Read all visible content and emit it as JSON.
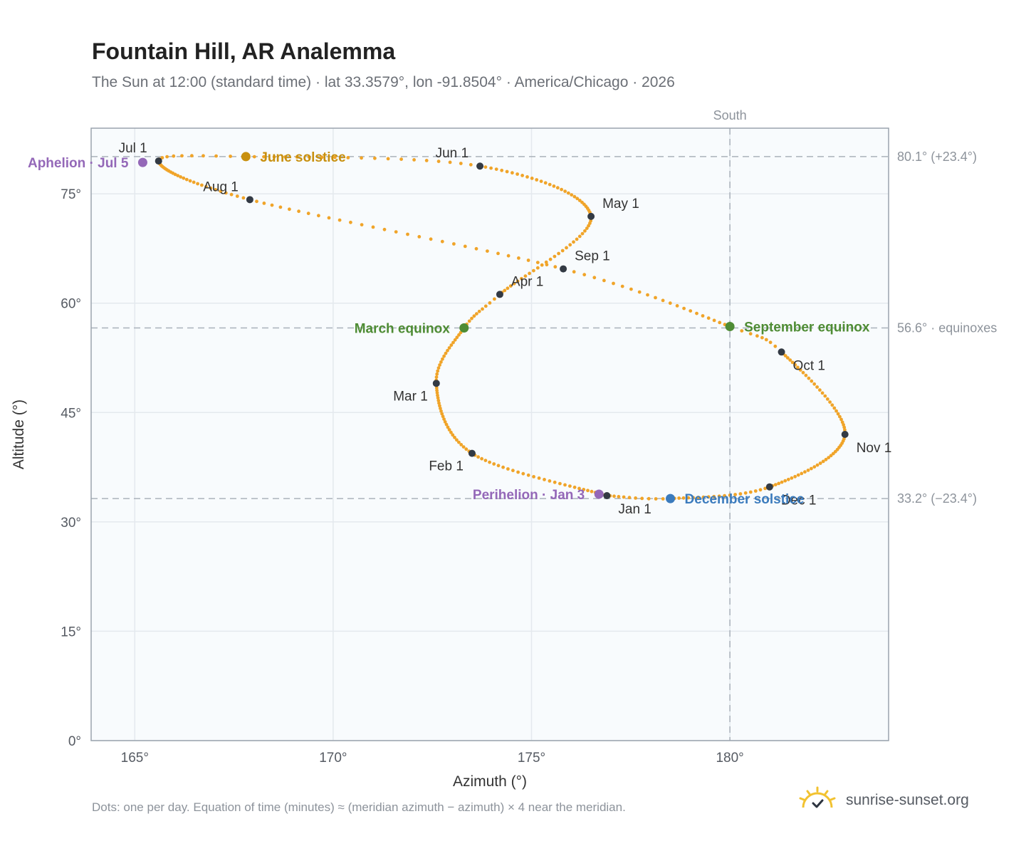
{
  "header": {
    "title": "Fountain Hill, AR Analemma",
    "subtitle": "The Sun at 12:00 (standard time) · lat 33.3579°, lon -91.8504° · America/Chicago · 2026"
  },
  "footer": {
    "note": "Dots: one per day. Equation of time (minutes) ≈ (meridian azimuth − azimuth) × 4 near the meridian.",
    "brand": "sunrise-sunset.org",
    "brand_icon": "sun-logo-icon"
  },
  "chart_data": {
    "type": "scatter",
    "xlabel": "Azimuth (°)",
    "ylabel": "Altitude (°)",
    "xlim": [
      163.9,
      184.0
    ],
    "ylim": [
      0,
      84
    ],
    "x_ticks": [
      {
        "value": 165,
        "label": "165°"
      },
      {
        "value": 170,
        "label": "170°"
      },
      {
        "value": 175,
        "label": "175°"
      },
      {
        "value": 180,
        "label": "180°"
      }
    ],
    "y_ticks": [
      {
        "value": 0,
        "label": "0°"
      },
      {
        "value": 15,
        "label": "15°"
      },
      {
        "value": 30,
        "label": "30°"
      },
      {
        "value": 45,
        "label": "45°"
      },
      {
        "value": 60,
        "label": "60°"
      },
      {
        "value": 75,
        "label": "75°"
      }
    ],
    "grid": true,
    "reference_lines": [
      {
        "axis": "y",
        "value": 80.1,
        "label": "80.1° (+23.4°)"
      },
      {
        "axis": "y",
        "value": 56.6,
        "label": "56.6° · equinoxes"
      },
      {
        "axis": "y",
        "value": 33.2,
        "label": "33.2° (−23.4°)"
      },
      {
        "axis": "x",
        "value": 180,
        "label": "South"
      }
    ],
    "series": [
      {
        "color": "#f0a429",
        "points_per": "day",
        "anchors": [
          {
            "day": 1,
            "az": 176.9,
            "alt": 33.6
          },
          {
            "day": 32,
            "az": 173.5,
            "alt": 39.4
          },
          {
            "day": 60,
            "az": 172.6,
            "alt": 49.0
          },
          {
            "day": 80,
            "az": 173.3,
            "alt": 56.6
          },
          {
            "day": 91,
            "az": 174.2,
            "alt": 61.2
          },
          {
            "day": 121,
            "az": 176.5,
            "alt": 71.9
          },
          {
            "day": 152,
            "az": 173.7,
            "alt": 78.8
          },
          {
            "day": 172,
            "az": 167.8,
            "alt": 80.1
          },
          {
            "day": 182,
            "az": 165.6,
            "alt": 79.5
          },
          {
            "day": 213,
            "az": 167.9,
            "alt": 74.2
          },
          {
            "day": 244,
            "az": 175.8,
            "alt": 64.7
          },
          {
            "day": 266,
            "az": 180.0,
            "alt": 56.8
          },
          {
            "day": 274,
            "az": 181.3,
            "alt": 53.3
          },
          {
            "day": 305,
            "az": 182.9,
            "alt": 42.0
          },
          {
            "day": 335,
            "az": 181.0,
            "alt": 34.8
          },
          {
            "day": 355,
            "az": 178.5,
            "alt": 33.2
          },
          {
            "day": 366,
            "az": 176.9,
            "alt": 33.6
          }
        ]
      }
    ],
    "month_markers": [
      {
        "label": "Jan 1",
        "az": 176.9,
        "alt": 33.6,
        "label_pos": "below-right"
      },
      {
        "label": "Feb 1",
        "az": 173.5,
        "alt": 39.4,
        "label_pos": "below-left"
      },
      {
        "label": "Mar 1",
        "az": 172.6,
        "alt": 49.0,
        "label_pos": "below-left"
      },
      {
        "label": "Apr 1",
        "az": 174.2,
        "alt": 61.2,
        "label_pos": "above-right"
      },
      {
        "label": "May 1",
        "az": 176.5,
        "alt": 71.9,
        "label_pos": "above-right"
      },
      {
        "label": "Jun 1",
        "az": 173.7,
        "alt": 78.8,
        "label_pos": "above-left"
      },
      {
        "label": "Jul 1",
        "az": 165.6,
        "alt": 79.5,
        "label_pos": "above-left"
      },
      {
        "label": "Aug 1",
        "az": 167.9,
        "alt": 74.2,
        "label_pos": "above-left"
      },
      {
        "label": "Sep 1",
        "az": 175.8,
        "alt": 64.7,
        "label_pos": "above-right"
      },
      {
        "label": "Oct 1",
        "az": 181.3,
        "alt": 53.3,
        "label_pos": "below-right"
      },
      {
        "label": "Nov 1",
        "az": 182.9,
        "alt": 42.0,
        "label_pos": "below-right"
      },
      {
        "label": "Dec 1",
        "az": 181.0,
        "alt": 34.8,
        "label_pos": "below-right"
      }
    ],
    "events": [
      {
        "label": "June solstice",
        "az": 167.8,
        "alt": 80.1,
        "color": "#c8900f",
        "label_pos": "right"
      },
      {
        "label": "March equinox",
        "az": 173.3,
        "alt": 56.6,
        "color": "#4e8c34",
        "label_pos": "left"
      },
      {
        "label": "September equinox",
        "az": 180.0,
        "alt": 56.8,
        "color": "#4e8c34",
        "label_pos": "right"
      },
      {
        "label": "December solstice",
        "az": 178.5,
        "alt": 33.2,
        "color": "#3b7bbd",
        "label_pos": "right"
      },
      {
        "label": "Perihelion · Jan 3",
        "az": 176.7,
        "alt": 33.8,
        "color": "#9468b8",
        "label_pos": "left"
      },
      {
        "label": "Aphelion · Jul 5",
        "az": 165.2,
        "alt": 79.3,
        "color": "#9468b8",
        "label_pos": "left"
      }
    ]
  }
}
